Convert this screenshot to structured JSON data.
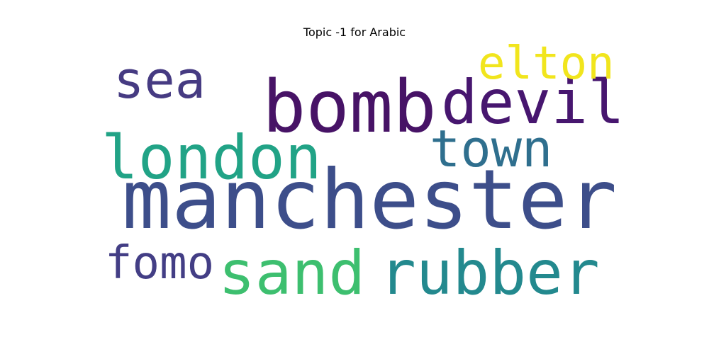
{
  "chart_data": {
    "type": "wordcloud",
    "title": "Topic -1 for Arabic",
    "words": [
      {
        "text": "manchester",
        "color": "#3d4e8a"
      },
      {
        "text": "bomb",
        "color": "#471366"
      },
      {
        "text": "devil",
        "color": "#47166f"
      },
      {
        "text": "london",
        "color": "#21a386"
      },
      {
        "text": "rubber",
        "color": "#23898e"
      },
      {
        "text": "sand",
        "color": "#3dbf6f"
      },
      {
        "text": "town",
        "color": "#2f6f8e"
      },
      {
        "text": "sea",
        "color": "#463b82"
      },
      {
        "text": "elton",
        "color": "#f1e51d"
      },
      {
        "text": "fomo",
        "color": "#433e85"
      }
    ]
  }
}
